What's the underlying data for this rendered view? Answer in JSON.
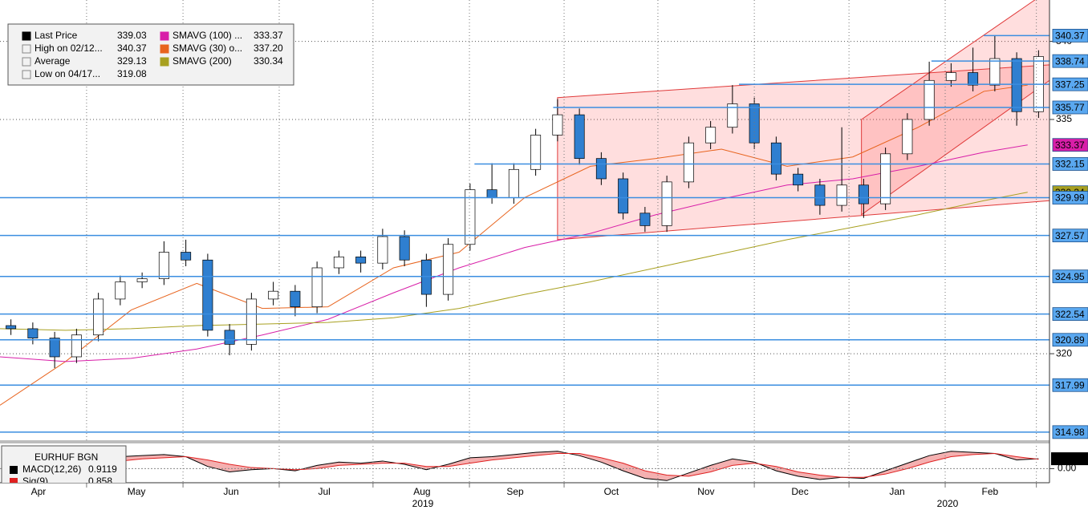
{
  "chart_data": [
    {
      "type": "candlestick",
      "ylim": [
        314.51,
        342.65
      ],
      "yticks": [
        320,
        335,
        340
      ],
      "xlim": [
        0,
        48
      ],
      "xticks": [
        {
          "value": 1.76,
          "label": "Apr"
        },
        {
          "value": 6.24,
          "label": "May"
        },
        {
          "value": 10.57,
          "label": "Jun"
        },
        {
          "value": 14.83,
          "label": "Jul"
        },
        {
          "value": 19.3,
          "label": "Aug"
        },
        {
          "value": 23.56,
          "label": "Sep"
        },
        {
          "value": 27.96,
          "label": "Oct"
        },
        {
          "value": 32.29,
          "label": "Nov"
        },
        {
          "value": 36.59,
          "label": "Dec"
        },
        {
          "value": 41.03,
          "label": "Jan"
        },
        {
          "value": 45.28,
          "label": "Feb"
        }
      ],
      "month_boundaries": [
        3.96,
        8.37,
        12.77,
        17.06,
        21.47,
        25.8,
        30.09,
        34.5,
        38.83,
        43.23,
        47.4
      ],
      "years": [
        {
          "value": 19.34,
          "label": "2019"
        },
        {
          "value": 43.34,
          "label": "2020"
        }
      ],
      "candles": {
        "x": [
          0.5,
          1.5,
          2.5,
          3.5,
          4.5,
          5.5,
          6.5,
          7.5,
          8.5,
          9.5,
          10.5,
          11.5,
          12.5,
          13.5,
          14.5,
          15.5,
          16.5,
          17.5,
          18.5,
          19.5,
          20.5,
          21.5,
          22.5,
          23.5,
          24.5,
          25.5,
          26.5,
          27.5,
          28.5,
          29.5,
          30.5,
          31.5,
          32.5,
          33.5,
          34.5,
          35.5,
          36.5,
          37.5,
          38.5,
          39.5,
          40.5,
          41.5,
          42.5,
          43.5,
          44.5,
          45.5,
          46.5,
          47.5
        ],
        "open": [
          321.8,
          321.6,
          321.0,
          319.8,
          321.2,
          323.5,
          324.6,
          324.8,
          326.5,
          326.0,
          321.5,
          320.6,
          323.5,
          324.0,
          323.0,
          325.5,
          326.2,
          325.8,
          327.5,
          326.0,
          323.8,
          327.0,
          330.5,
          330.0,
          331.8,
          334.0,
          335.3,
          332.5,
          331.2,
          329.0,
          328.2,
          331.0,
          333.5,
          334.5,
          336.0,
          333.5,
          331.5,
          330.8,
          329.5,
          330.8,
          329.6,
          332.8,
          335.0,
          337.5,
          338.0,
          337.2,
          338.9,
          335.5
        ],
        "high": [
          322.2,
          322.0,
          321.4,
          321.6,
          323.9,
          325.0,
          325.2,
          327.2,
          327.3,
          326.4,
          321.9,
          323.9,
          324.6,
          324.4,
          325.9,
          326.6,
          326.6,
          328.0,
          327.9,
          326.4,
          327.4,
          330.9,
          332.2,
          332.2,
          334.4,
          336.3,
          335.7,
          332.9,
          331.6,
          329.4,
          331.4,
          333.9,
          334.9,
          337.2,
          336.4,
          333.9,
          331.9,
          331.2,
          334.5,
          331.2,
          333.2,
          335.4,
          338.7,
          338.6,
          339.6,
          340.37,
          339.3,
          339.43
        ],
        "low": [
          321.2,
          320.6,
          319.08,
          319.4,
          320.8,
          323.1,
          324.2,
          324.4,
          325.6,
          321.1,
          319.9,
          320.2,
          323.1,
          322.4,
          322.6,
          325.1,
          325.2,
          325.4,
          325.6,
          323.0,
          323.4,
          326.6,
          329.6,
          329.6,
          331.4,
          333.6,
          332.1,
          330.8,
          328.6,
          327.8,
          327.8,
          330.6,
          333.1,
          334.1,
          333.1,
          331.1,
          330.4,
          328.9,
          329.1,
          328.7,
          329.2,
          332.4,
          334.6,
          337.1,
          336.8,
          336.8,
          334.6,
          335.1
        ],
        "close": [
          321.6,
          321.0,
          319.8,
          321.2,
          323.5,
          324.6,
          324.8,
          326.5,
          326.0,
          321.5,
          320.6,
          323.5,
          324.0,
          323.0,
          325.5,
          326.2,
          325.8,
          327.5,
          326.0,
          323.8,
          327.0,
          330.5,
          330.0,
          331.8,
          334.0,
          335.3,
          332.5,
          331.2,
          329.0,
          328.2,
          331.0,
          333.5,
          334.5,
          336.0,
          333.5,
          331.5,
          330.8,
          329.5,
          330.8,
          329.6,
          332.8,
          335.0,
          337.5,
          338.0,
          337.2,
          338.9,
          335.5,
          339.03
        ],
        "up_color": "#ffffff",
        "down_color": "#2f7fd0"
      },
      "series": [
        {
          "color": "#e8641e",
          "x": [
            0,
            3,
            6,
            9,
            12,
            15,
            18,
            21,
            24,
            27,
            30,
            33,
            36,
            39,
            42,
            45,
            47
          ],
          "values": [
            316.7,
            319.5,
            322.8,
            324.5,
            322.9,
            323.0,
            325.5,
            326.5,
            330.0,
            332.0,
            332.5,
            333.1,
            332.0,
            332.6,
            334.5,
            336.8,
            337.2
          ]
        },
        {
          "color": "#d81ea8",
          "x": [
            0,
            3,
            6,
            9,
            12,
            15,
            18,
            21,
            24,
            27,
            30,
            33,
            36,
            39,
            42,
            45,
            47
          ],
          "values": [
            319.8,
            319.5,
            319.7,
            320.3,
            321.2,
            322.2,
            323.9,
            325.5,
            326.8,
            327.7,
            328.9,
            329.9,
            330.8,
            331.2,
            332.0,
            332.9,
            333.37
          ]
        },
        {
          "color": "#a8a020",
          "x": [
            0,
            3,
            6,
            9,
            12,
            15,
            18,
            21,
            24,
            27,
            30,
            33,
            36,
            39,
            42,
            45,
            47
          ],
          "values": [
            321.6,
            321.5,
            321.6,
            321.8,
            321.9,
            322.0,
            322.3,
            322.9,
            323.8,
            324.6,
            325.5,
            326.4,
            327.3,
            328.1,
            328.9,
            329.8,
            330.34
          ]
        }
      ],
      "channels": [
        {
          "x": [
            25.5,
            48
          ],
          "upper": [
            336.4,
            338.5
          ],
          "lower": [
            327.3,
            329.8
          ]
        },
        {
          "x": [
            39.4,
            48
          ],
          "upper": [
            335.0,
            343.3
          ],
          "lower": [
            328.9,
            337.5
          ]
        }
      ],
      "levels": [
        {
          "value": 340.37,
          "from": 45,
          "line": true,
          "color": "#5aa8f0",
          "text_color": "#000000"
        },
        {
          "value": 338.74,
          "from": 42.6,
          "line": true,
          "color": "#5aa8f0",
          "text_color": "#000000"
        },
        {
          "value": 337.25,
          "from": 33.8,
          "line": true,
          "color": "#5aa8f0",
          "text_color": "#000000"
        },
        {
          "value": 335.77,
          "from": 25.3,
          "line": true,
          "color": "#5aa8f0",
          "text_color": "#000000"
        },
        {
          "value": 333.37,
          "from": 47.5,
          "line": false,
          "color": "#d81ea8",
          "text_color": "#ffffff"
        },
        {
          "value": 332.15,
          "from": 21.7,
          "line": true,
          "color": "#5aa8f0",
          "text_color": "#000000"
        },
        {
          "value": 330.34,
          "from": 47.5,
          "line": false,
          "color": "#a8a020",
          "text_color": "#000000"
        },
        {
          "value": 329.99,
          "from": 0,
          "line": true,
          "color": "#5aa8f0",
          "text_color": "#000000"
        },
        {
          "value": 327.57,
          "from": 0,
          "line": true,
          "color": "#5aa8f0",
          "text_color": "#000000"
        },
        {
          "value": 324.95,
          "from": 0,
          "line": true,
          "color": "#5aa8f0",
          "text_color": "#000000"
        },
        {
          "value": 322.54,
          "from": 0,
          "line": true,
          "color": "#5aa8f0",
          "text_color": "#000000"
        },
        {
          "value": 320.89,
          "from": 0,
          "line": true,
          "color": "#5aa8f0",
          "text_color": "#000000"
        },
        {
          "value": 317.99,
          "from": 0,
          "line": true,
          "color": "#5aa8f0",
          "text_color": "#000000"
        },
        {
          "value": 314.98,
          "from": 0,
          "line": true,
          "color": "#5aa8f0",
          "text_color": "#000000"
        }
      ],
      "legend": [
        {
          "label": "Last Price",
          "value": "339.03",
          "color": "#000000"
        },
        {
          "label": "High on 02/12...",
          "value": "340.37",
          "color": "#888888"
        },
        {
          "label": "Average",
          "value": "329.13",
          "color": "#888888"
        },
        {
          "label": "Low on 04/17...",
          "value": "319.08",
          "color": "#888888"
        },
        {
          "label": "SMAVG (100)  ...",
          "value": "333.37",
          "color": "#d81ea8"
        },
        {
          "label": "SMAVG (30)  o...",
          "value": "337.20",
          "color": "#e8641e"
        },
        {
          "label": "SMAVG (200)",
          "value": "330.34",
          "color": "#a8a020"
        }
      ]
    },
    {
      "type": "macd",
      "title": "EURHUF BGN",
      "ylim": [
        -1.3,
        2.1
      ],
      "yticks": [
        {
          "value": 0,
          "label": "0.00"
        }
      ],
      "last": 0.9119,
      "series": [
        {
          "name": "MACD(12,26)",
          "last": "0.9119",
          "color": "#000000",
          "values": [
            -0.2,
            0.1,
            0.3,
            0.6,
            0.9,
            1.1,
            1.2,
            1.3,
            1.1,
            0.2,
            -0.3,
            -0.1,
            0.0,
            -0.2,
            0.3,
            0.6,
            0.5,
            0.7,
            0.4,
            -0.1,
            0.4,
            1.0,
            1.1,
            1.3,
            1.5,
            1.6,
            1.2,
            0.6,
            -0.2,
            -0.9,
            -1.1,
            -0.4,
            0.3,
            0.9,
            0.6,
            -0.2,
            -0.7,
            -1.0,
            -0.8,
            -0.9,
            -0.2,
            0.5,
            1.2,
            1.6,
            1.5,
            1.4,
            0.8,
            0.9119
          ]
        },
        {
          "name": "Sig(9)",
          "last": "0.858",
          "color": "#e02020",
          "values": [
            0.0,
            0.0,
            0.1,
            0.3,
            0.5,
            0.7,
            0.9,
            1.0,
            1.1,
            0.8,
            0.4,
            0.1,
            0.0,
            -0.1,
            0.0,
            0.3,
            0.4,
            0.5,
            0.5,
            0.2,
            0.2,
            0.5,
            0.8,
            1.0,
            1.2,
            1.4,
            1.4,
            1.0,
            0.5,
            -0.2,
            -0.6,
            -0.7,
            -0.3,
            0.3,
            0.5,
            0.2,
            -0.3,
            -0.6,
            -0.8,
            -0.8,
            -0.5,
            0.0,
            0.6,
            1.1,
            1.3,
            1.4,
            1.1,
            0.858
          ]
        }
      ]
    }
  ]
}
